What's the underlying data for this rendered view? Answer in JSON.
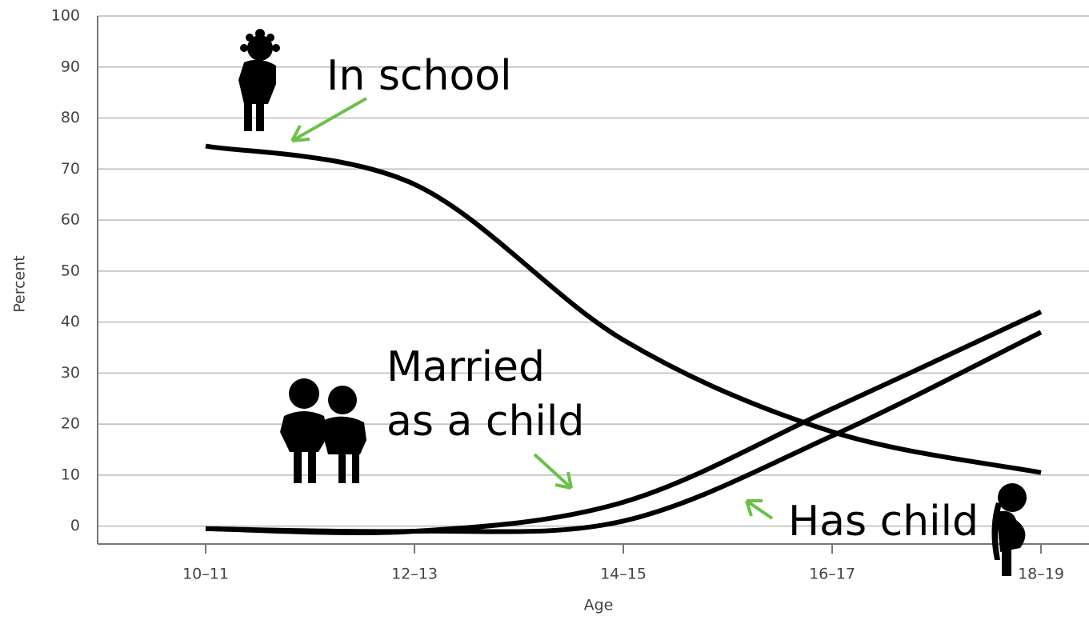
{
  "chart_data": {
    "type": "line",
    "categories": [
      "10–11",
      "12–13",
      "14–15",
      "16–17",
      "18–19"
    ],
    "series": [
      {
        "name": "In school",
        "color": "#000000",
        "values": [
          74.5,
          67,
          36.5,
          18.5,
          10.5
        ]
      },
      {
        "name": "Married as a child",
        "color": "#000000",
        "values": [
          -0.5,
          -1,
          4.7,
          23,
          42
        ]
      },
      {
        "name": "Has child",
        "color": "#000000",
        "values": [
          -0.5,
          -1,
          1,
          17.7,
          38
        ]
      }
    ],
    "ylim": [
      -3.5,
      100
    ],
    "yticks": [
      0,
      10,
      20,
      30,
      40,
      50,
      60,
      70,
      80,
      90,
      100
    ],
    "xlabel": "Age",
    "ylabel": "Percent",
    "grid": true,
    "annotations": [
      "In school",
      "Married",
      "as a child",
      "Has child"
    ]
  }
}
